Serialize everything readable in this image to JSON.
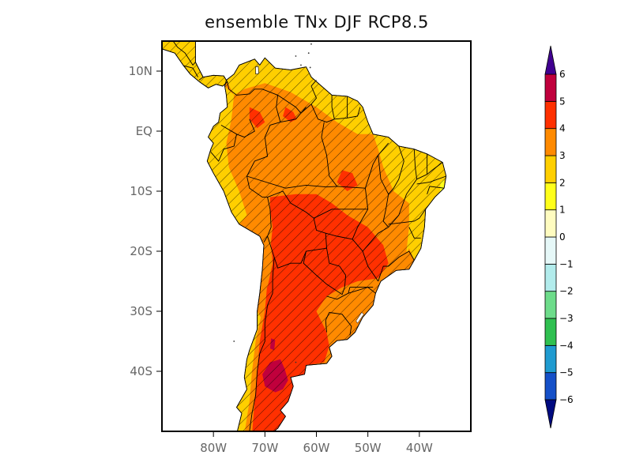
{
  "title": "ensemble TNx DJF RCP8.5",
  "map": {
    "projection": "lat-lon",
    "lon_range": [
      -90,
      -30
    ],
    "lat_range": [
      -50,
      15
    ],
    "lat_ticks": [
      {
        "value": 10,
        "label": "10N"
      },
      {
        "value": 0,
        "label": "EQ"
      },
      {
        "value": -10,
        "label": "10S"
      },
      {
        "value": -20,
        "label": "20S"
      },
      {
        "value": -30,
        "label": "30S"
      },
      {
        "value": -40,
        "label": "40S"
      }
    ],
    "lon_ticks": [
      {
        "value": -80,
        "label": "80W"
      },
      {
        "value": -70,
        "label": "70W"
      },
      {
        "value": -60,
        "label": "60W"
      },
      {
        "value": -50,
        "label": "50W"
      },
      {
        "value": -40,
        "label": "40W"
      }
    ],
    "hatching": "diagonal hatching over nearly all land (significance)",
    "regions": [
      {
        "name": "Central America",
        "value_class": "2-3"
      },
      {
        "name": "Northern South America coast",
        "value_class": "2-3"
      },
      {
        "name": "Amazon / Colombia interior",
        "value_class": "3-4"
      },
      {
        "name": "Northeast Brazil",
        "value_class": "2-3"
      },
      {
        "name": "Central Brazil / Paraguay / Bolivia",
        "value_class": "4-5"
      },
      {
        "name": "Southeast Brazil coast",
        "value_class": "3-4"
      },
      {
        "name": "Argentina interior",
        "value_class": "4-5"
      },
      {
        "name": "Northern Patagonia",
        "value_class": "5-6"
      },
      {
        "name": "Uruguay",
        "value_class": "3-4"
      },
      {
        "name": "Chile coast",
        "value_class": "2-4"
      }
    ]
  },
  "colorbar": {
    "levels": [
      -6,
      -5,
      -4,
      -3,
      -2,
      -1,
      0,
      1,
      2,
      3,
      4,
      5,
      6
    ],
    "labels": [
      "-6",
      "-5",
      "-4",
      "-3",
      "-2",
      "-1",
      "0",
      "1",
      "2",
      "3",
      "4",
      "5",
      "6"
    ],
    "colors": [
      "#1550c8",
      "#1f9bd0",
      "#2fc050",
      "#6ddc8a",
      "#b2ecec",
      "#e6f8f8",
      "#fffcc0",
      "#ffff1a",
      "#ffcf00",
      "#ff8a00",
      "#ff3000",
      "#c0003c"
    ],
    "under_color": "#000a80",
    "over_color": "#400090"
  },
  "chart_data": {
    "type": "heatmap",
    "title": "ensemble TNx DJF RCP8.5",
    "xlabel": "",
    "ylabel": "",
    "xlim": [
      -90,
      -30
    ],
    "ylim": [
      -50,
      15
    ],
    "x_ticks": [
      "80W",
      "70W",
      "60W",
      "50W",
      "40W"
    ],
    "y_ticks": [
      "10N",
      "EQ",
      "10S",
      "20S",
      "30S",
      "40S"
    ],
    "colorbar_levels": [
      -6,
      -5,
      -4,
      -3,
      -2,
      -1,
      0,
      1,
      2,
      3,
      4,
      5,
      6
    ],
    "grid": false,
    "legend": "right colorbar"
  }
}
